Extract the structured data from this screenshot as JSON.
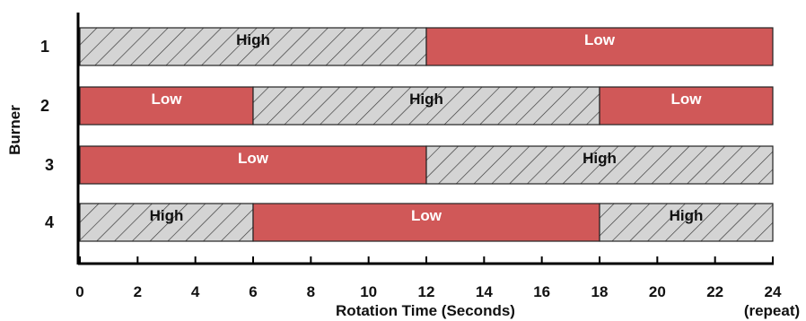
{
  "chart_data": {
    "type": "bar",
    "orientation": "horizontal-timeline",
    "xlabel": "Rotation Time (Seconds)",
    "ylabel": "Burner",
    "xlim": [
      0,
      24
    ],
    "x_ticks": [
      0,
      2,
      4,
      6,
      8,
      10,
      12,
      14,
      16,
      18,
      20,
      22,
      24
    ],
    "repeat_note": "(repeat)",
    "grid": false,
    "colors": {
      "Low": "#d05858",
      "High": "#d4d4d4",
      "hatch": "#333333",
      "outline": "#222222"
    },
    "burners": [
      {
        "label": "1",
        "segments": [
          {
            "state": "High",
            "start": 0,
            "end": 12
          },
          {
            "state": "Low",
            "start": 12,
            "end": 24
          }
        ]
      },
      {
        "label": "2",
        "segments": [
          {
            "state": "Low",
            "start": 0,
            "end": 6
          },
          {
            "state": "High",
            "start": 6,
            "end": 18
          },
          {
            "state": "Low",
            "start": 18,
            "end": 24
          }
        ]
      },
      {
        "label": "3",
        "segments": [
          {
            "state": "Low",
            "start": 0,
            "end": 12
          },
          {
            "state": "High",
            "start": 12,
            "end": 24
          }
        ]
      },
      {
        "label": "4",
        "segments": [
          {
            "state": "High",
            "start": 0,
            "end": 6
          },
          {
            "state": "Low",
            "start": 6,
            "end": 18
          },
          {
            "state": "High",
            "start": 18,
            "end": 24
          }
        ]
      }
    ]
  }
}
